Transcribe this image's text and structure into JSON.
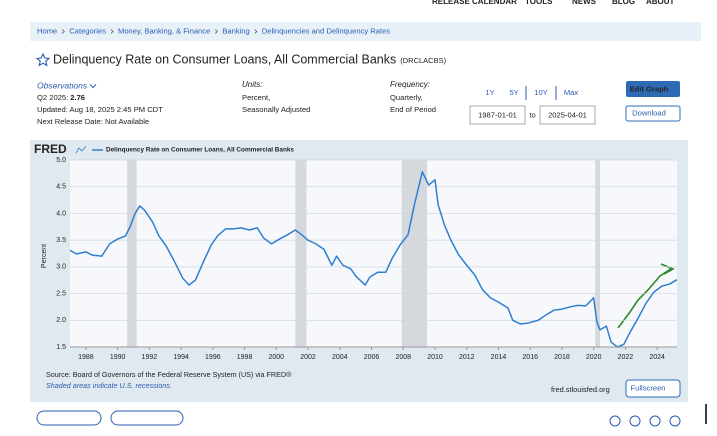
{
  "nav": [
    "RELEASE CALENDAR",
    "TOOLS",
    "NEWS",
    "BLOG",
    "ABOUT"
  ],
  "breadcrumb": [
    "Home",
    "Categories",
    "Money, Banking, & Finance",
    "Banking",
    "Delinquencies and Delinquency Rates"
  ],
  "header": {
    "title": "Delinquency Rate on Consumer Loans, All Commercial Banks",
    "series_id": "(DRCLACBS)"
  },
  "observations": {
    "label": "Observations",
    "latest_label": "Q2 2025:",
    "latest_value": 2.76,
    "updated": "Updated: Aug 18, 2025 2:45 PM CDT",
    "next_release": "Next Release Date: Not Available"
  },
  "units": {
    "label": "Units:",
    "lines": [
      "Percent,",
      "Seasonally Adjusted"
    ]
  },
  "frequency": {
    "label": "Frequency:",
    "lines": [
      "Quarterly,",
      "End of Period"
    ]
  },
  "range_buttons": [
    "1Y",
    "5Y",
    "10Y",
    "Max"
  ],
  "date_range": {
    "start": "1987-01-01",
    "separator": "to",
    "end": "2025-04-01"
  },
  "actions": [
    "Edit Graph",
    "Download"
  ],
  "chart_data": {
    "type": "line",
    "logo": "FRED",
    "ylabel": "Percent",
    "series": [
      {
        "name": "Delinquency Rate on Consumer Loans, All Commercial Banks",
        "color": "#2f7fd0",
        "values": [
          3.31,
          3.24,
          3.28,
          3.22,
          3.2,
          3.43,
          3.52,
          3.58,
          3.76,
          4.0,
          4.14,
          4.06,
          3.84,
          3.58,
          3.37,
          3.09,
          2.79,
          2.66,
          2.75,
          3.09,
          3.41,
          3.58,
          3.71,
          3.71,
          3.73,
          3.69,
          3.73,
          3.54,
          3.43,
          3.52,
          3.6,
          3.69,
          3.6,
          3.5,
          3.43,
          3.33,
          3.03,
          3.2,
          3.03,
          2.96,
          2.83,
          2.66,
          2.81,
          2.9,
          2.9,
          3.16,
          3.41,
          3.6,
          4.16,
          4.78,
          4.53,
          4.63,
          4.16,
          3.78,
          3.5,
          3.22,
          3.03,
          2.85,
          2.57,
          2.42,
          2.34,
          2.23,
          2.0,
          1.93,
          1.95,
          2.0,
          2.1,
          2.19,
          2.21,
          2.25,
          2.28,
          2.27,
          2.42,
          1.97,
          1.82,
          1.89,
          1.59,
          1.5,
          1.55,
          1.78,
          2.04,
          2.32,
          2.53,
          2.64,
          2.68,
          2.76
        ]
      }
    ],
    "x": [
      1987,
      1987.4,
      1988,
      1988.4,
      1989,
      1989.5,
      1990,
      1990.5,
      1990.8,
      1991.1,
      1991.4,
      1991.7,
      1992.2,
      1992.6,
      1993.1,
      1993.6,
      1994.1,
      1994.5,
      1994.9,
      1995.4,
      1995.9,
      1996.3,
      1996.8,
      1997.3,
      1997.8,
      1998.3,
      1998.8,
      1999.2,
      1999.7,
      2000.2,
      2000.7,
      2001.2,
      2001.6,
      2002,
      2002.5,
      2003,
      2003.5,
      2003.8,
      2004.2,
      2004.7,
      2005,
      2005.6,
      2005.9,
      2006.4,
      2006.9,
      2007.3,
      2007.8,
      2008.3,
      2008.7,
      2009.2,
      2009.6,
      2010,
      2010.2,
      2010.6,
      2011,
      2011.5,
      2012,
      2012.5,
      2013,
      2013.5,
      2014,
      2014.6,
      2014.9,
      2015.4,
      2015.9,
      2016.5,
      2017,
      2017.5,
      2018,
      2018.5,
      2019,
      2019.5,
      2020,
      2020.2,
      2020.4,
      2020.8,
      2021.1,
      2021.5,
      2021.9,
      2022.3,
      2022.8,
      2023.3,
      2023.8,
      2024.3,
      2024.8,
      2025.25
    ],
    "recessions": [
      [
        1990.6,
        1991.2
      ],
      [
        2001.2,
        2001.9
      ],
      [
        2007.9,
        2009.5
      ],
      [
        2020.1,
        2020.4
      ]
    ],
    "xlim": [
      1987,
      2025.25
    ],
    "xticks": [
      1988,
      1990,
      1992,
      1994,
      1996,
      1998,
      2000,
      2002,
      2004,
      2006,
      2008,
      2010,
      2012,
      2014,
      2016,
      2018,
      2020,
      2022,
      2024
    ],
    "ylim": [
      1.5,
      5.0
    ],
    "yticks": [
      1.5,
      {
        "value": 2,
        "label": "2.0"
      },
      2.5,
      {
        "value": 3,
        "label": "3.0"
      },
      3.5,
      {
        "value": 4,
        "label": "4.0"
      },
      4.5,
      {
        "value": 5,
        "label": "5.0"
      }
    ],
    "grid": true
  },
  "source": "Source: Board of Governors of the Federal Reserve System (US) via FRED®",
  "shading_note": "Shaded areas indicate U.S. recessions.",
  "url": "fred.stlouisfed.org",
  "fullscreen": "Fullscreen"
}
